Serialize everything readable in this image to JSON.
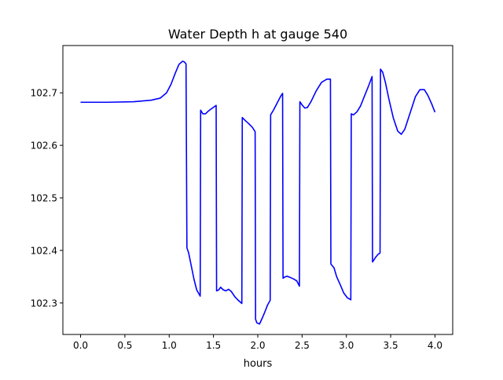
{
  "chart_data": {
    "type": "line",
    "title": "Water Depth h at gauge 540",
    "xlabel": "hours",
    "ylabel": "",
    "xlim": [
      -0.2,
      4.2
    ],
    "ylim": [
      102.24,
      102.79
    ],
    "xticks": [
      0.0,
      0.5,
      1.0,
      1.5,
      2.0,
      2.5,
      3.0,
      3.5,
      4.0
    ],
    "xtick_labels": [
      "0.0",
      "0.5",
      "1.0",
      "1.5",
      "2.0",
      "2.5",
      "3.0",
      "3.5",
      "4.0"
    ],
    "yticks": [
      102.3,
      102.4,
      102.5,
      102.6,
      102.7
    ],
    "ytick_labels": [
      "102.3",
      "102.4",
      "102.5",
      "102.6",
      "102.7"
    ],
    "grid": false,
    "series": [
      {
        "color": "#0000ff",
        "x": [
          0.0,
          0.3,
          0.6,
          0.8,
          0.9,
          0.97,
          1.02,
          1.07,
          1.11,
          1.15,
          1.17,
          1.19,
          1.2,
          1.22,
          1.25,
          1.28,
          1.31,
          1.35,
          1.355,
          1.38,
          1.41,
          1.44,
          1.48,
          1.53,
          1.535,
          1.56,
          1.58,
          1.61,
          1.64,
          1.67,
          1.7,
          1.74,
          1.78,
          1.82,
          1.825,
          1.86,
          1.9,
          1.94,
          1.97,
          1.975,
          1.99,
          2.02,
          2.05,
          2.08,
          2.11,
          2.14,
          2.145,
          2.18,
          2.22,
          2.26,
          2.28,
          2.285,
          2.3,
          2.33,
          2.36,
          2.4,
          2.44,
          2.47,
          2.475,
          2.5,
          2.53,
          2.56,
          2.6,
          2.66,
          2.72,
          2.78,
          2.82,
          2.825,
          2.86,
          2.89,
          2.93,
          2.97,
          3.01,
          3.05,
          3.055,
          3.08,
          3.12,
          3.16,
          3.2,
          3.25,
          3.29,
          3.295,
          3.33,
          3.36,
          3.38,
          3.385,
          3.41,
          3.44,
          3.48,
          3.53,
          3.58,
          3.62,
          3.66,
          3.72,
          3.78,
          3.83,
          3.88,
          3.92,
          3.96,
          4.0
        ],
        "y": [
          102.682,
          102.682,
          102.683,
          102.686,
          102.69,
          102.7,
          102.716,
          102.738,
          102.754,
          102.76,
          102.759,
          102.755,
          102.405,
          102.395,
          102.37,
          102.345,
          102.325,
          102.313,
          102.667,
          102.66,
          102.66,
          102.665,
          102.67,
          102.676,
          102.323,
          102.325,
          102.33,
          102.325,
          102.323,
          102.326,
          102.322,
          102.312,
          102.305,
          102.299,
          102.653,
          102.647,
          102.641,
          102.634,
          102.626,
          102.269,
          102.262,
          102.26,
          102.271,
          102.283,
          102.296,
          102.305,
          102.658,
          102.668,
          102.681,
          102.694,
          102.699,
          102.347,
          102.349,
          102.351,
          102.349,
          102.346,
          102.342,
          102.332,
          102.683,
          102.677,
          102.671,
          102.672,
          102.683,
          102.704,
          102.72,
          102.726,
          102.726,
          102.374,
          102.367,
          102.35,
          102.335,
          102.319,
          102.31,
          102.306,
          102.66,
          102.658,
          102.664,
          102.675,
          102.692,
          102.713,
          102.731,
          102.378,
          102.387,
          102.393,
          102.395,
          102.745,
          102.739,
          102.72,
          102.688,
          102.652,
          102.627,
          102.621,
          102.631,
          102.662,
          102.693,
          102.706,
          102.706,
          102.695,
          102.68,
          102.663
        ]
      }
    ]
  }
}
